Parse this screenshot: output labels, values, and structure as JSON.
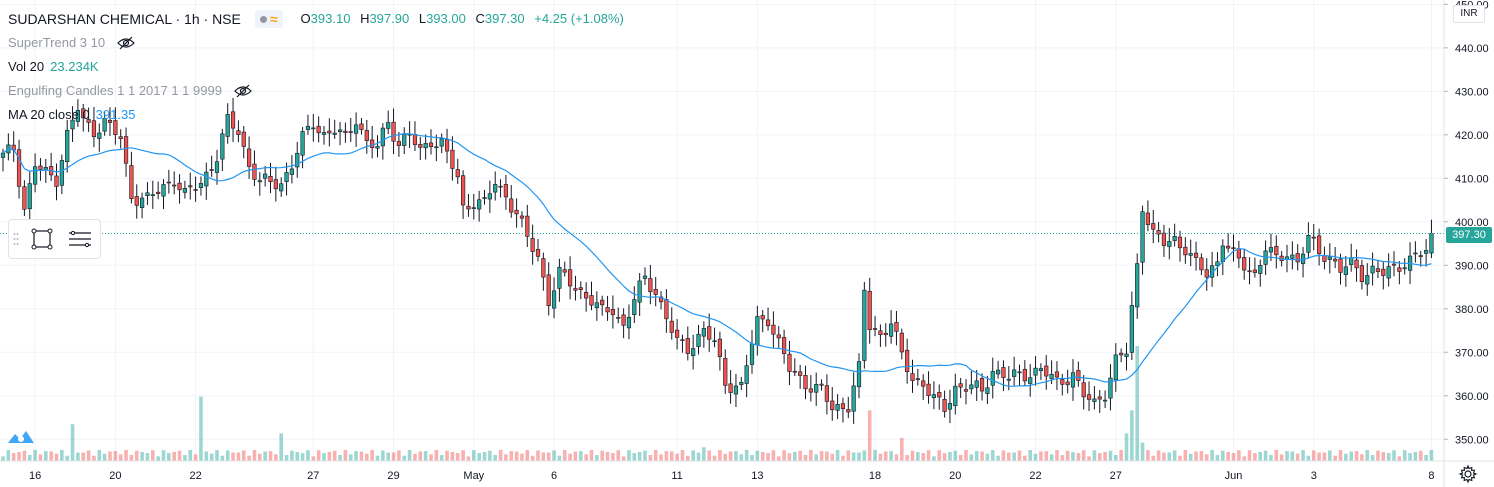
{
  "header": {
    "symbol": "SUDARSHAN CHEMICAL · 1h · NSE",
    "ohlc": {
      "o_label": "O",
      "o": "393.10",
      "h_label": "H",
      "h": "397.90",
      "l_label": "L",
      "l": "393.00",
      "c_label": "C",
      "c": "397.30",
      "change": "+4.25 (+1.08%)"
    }
  },
  "indicators": {
    "supertrend": "SuperTrend 3 10",
    "volume_label": "Vol 20",
    "volume_value": "23.234K",
    "engulfing": "Engulfing Candles 1 1 2017 1 1 9999",
    "ma_label": "MA 20 close 0",
    "ma_value": "391.35"
  },
  "axis": {
    "currency": "INR",
    "last_price": "397.30"
  },
  "colors": {
    "up": "#26a69a",
    "down": "#ef5350",
    "ma": "#2196f3",
    "grid": "#f0f3fa"
  },
  "chart_data": {
    "type": "candlestick",
    "interval": "1h",
    "y_axis": {
      "ticks": [
        350,
        360,
        370,
        380,
        390,
        400,
        410,
        420,
        430,
        440,
        450
      ],
      "range": [
        345,
        451
      ]
    },
    "x_axis": {
      "labels": [
        {
          "i": 6,
          "text": "16"
        },
        {
          "i": 21,
          "text": "20"
        },
        {
          "i": 36,
          "text": "22"
        },
        {
          "i": 58,
          "text": "27"
        },
        {
          "i": 73,
          "text": "29"
        },
        {
          "i": 88,
          "text": "May"
        },
        {
          "i": 103,
          "text": "6"
        },
        {
          "i": 126,
          "text": "11"
        },
        {
          "i": 141,
          "text": "13"
        },
        {
          "i": 163,
          "text": "18"
        },
        {
          "i": 178,
          "text": "20"
        },
        {
          "i": 193,
          "text": "22"
        },
        {
          "i": 208,
          "text": "27"
        },
        {
          "i": 230,
          "text": "Jun"
        },
        {
          "i": 245,
          "text": "3"
        },
        {
          "i": 267,
          "text": "8"
        }
      ]
    },
    "keypoints": [
      [
        0,
        415
      ],
      [
        2,
        417
      ],
      [
        4,
        403
      ],
      [
        6,
        413
      ],
      [
        8,
        411
      ],
      [
        10,
        410
      ],
      [
        12,
        420
      ],
      [
        14,
        426
      ],
      [
        15,
        423
      ],
      [
        17,
        421
      ],
      [
        19,
        423
      ],
      [
        22,
        419
      ],
      [
        24,
        406
      ],
      [
        27,
        405
      ],
      [
        29,
        407
      ],
      [
        32,
        410
      ],
      [
        34,
        406
      ],
      [
        37,
        409
      ],
      [
        40,
        415
      ],
      [
        42,
        423
      ],
      [
        44,
        421
      ],
      [
        46,
        413
      ],
      [
        48,
        409
      ],
      [
        52,
        409
      ],
      [
        54,
        413
      ],
      [
        56,
        419
      ],
      [
        58,
        423
      ],
      [
        60,
        420
      ],
      [
        62,
        421
      ],
      [
        64,
        419
      ],
      [
        66,
        424
      ],
      [
        68,
        418
      ],
      [
        70,
        417
      ],
      [
        72,
        423
      ],
      [
        74,
        418
      ],
      [
        76,
        420
      ],
      [
        78,
        416
      ],
      [
        80,
        419
      ],
      [
        82,
        418
      ],
      [
        85,
        410
      ],
      [
        86,
        403
      ],
      [
        88,
        405
      ],
      [
        90,
        404
      ],
      [
        92,
        409
      ],
      [
        94,
        406
      ],
      [
        96,
        402
      ],
      [
        98,
        396
      ],
      [
        100,
        392
      ],
      [
        102,
        382
      ],
      [
        104,
        388
      ],
      [
        106,
        386
      ],
      [
        108,
        384
      ],
      [
        110,
        382
      ],
      [
        112,
        379
      ],
      [
        114,
        380
      ],
      [
        116,
        376
      ],
      [
        118,
        382
      ],
      [
        120,
        387
      ],
      [
        122,
        384
      ],
      [
        124,
        378
      ],
      [
        126,
        372
      ],
      [
        128,
        371
      ],
      [
        131,
        375
      ],
      [
        133,
        372
      ],
      [
        135,
        363
      ],
      [
        138,
        362
      ],
      [
        141,
        377
      ],
      [
        143,
        378
      ],
      [
        145,
        372
      ],
      [
        147,
        366
      ],
      [
        150,
        363
      ],
      [
        153,
        361
      ],
      [
        155,
        357
      ],
      [
        158,
        358
      ],
      [
        160,
        366
      ],
      [
        161,
        384
      ],
      [
        162,
        376
      ],
      [
        164,
        374
      ],
      [
        166,
        377
      ],
      [
        168,
        369
      ],
      [
        170,
        364
      ],
      [
        172,
        363
      ],
      [
        174,
        359
      ],
      [
        176,
        357
      ],
      [
        178,
        362
      ],
      [
        181,
        362
      ],
      [
        183,
        361
      ],
      [
        185,
        366
      ],
      [
        188,
        364
      ],
      [
        191,
        365
      ],
      [
        194,
        366
      ],
      [
        197,
        363
      ],
      [
        200,
        365
      ],
      [
        202,
        360
      ],
      [
        204,
        358
      ],
      [
        206,
        361
      ],
      [
        208,
        368
      ],
      [
        210,
        370
      ],
      [
        211,
        380
      ],
      [
        212,
        390
      ],
      [
        213,
        404
      ],
      [
        215,
        397
      ],
      [
        217,
        395
      ],
      [
        219,
        396
      ],
      [
        221,
        394
      ],
      [
        223,
        390
      ],
      [
        225,
        388
      ],
      [
        227,
        391
      ],
      [
        228,
        396
      ],
      [
        230,
        392
      ],
      [
        232,
        390
      ],
      [
        234,
        388
      ],
      [
        236,
        394
      ],
      [
        238,
        391
      ],
      [
        240,
        393
      ],
      [
        242,
        391
      ],
      [
        244,
        396
      ],
      [
        246,
        393
      ],
      [
        248,
        392
      ],
      [
        250,
        389
      ],
      [
        252,
        390
      ],
      [
        254,
        388
      ],
      [
        256,
        389
      ],
      [
        258,
        388
      ],
      [
        260,
        389
      ],
      [
        262,
        391
      ],
      [
        264,
        392
      ],
      [
        266,
        393
      ],
      [
        267,
        397.3
      ]
    ],
    "volume_spikes": [
      {
        "i": 13,
        "v": 8
      },
      {
        "i": 37,
        "v": 14
      },
      {
        "i": 52,
        "v": 6
      },
      {
        "i": 131,
        "v": 3
      },
      {
        "i": 162,
        "v": 11
      },
      {
        "i": 168,
        "v": 5
      },
      {
        "i": 210,
        "v": 6
      },
      {
        "i": 211,
        "v": 11
      },
      {
        "i": 212,
        "v": 25
      },
      {
        "i": 213,
        "v": 4
      }
    ]
  }
}
